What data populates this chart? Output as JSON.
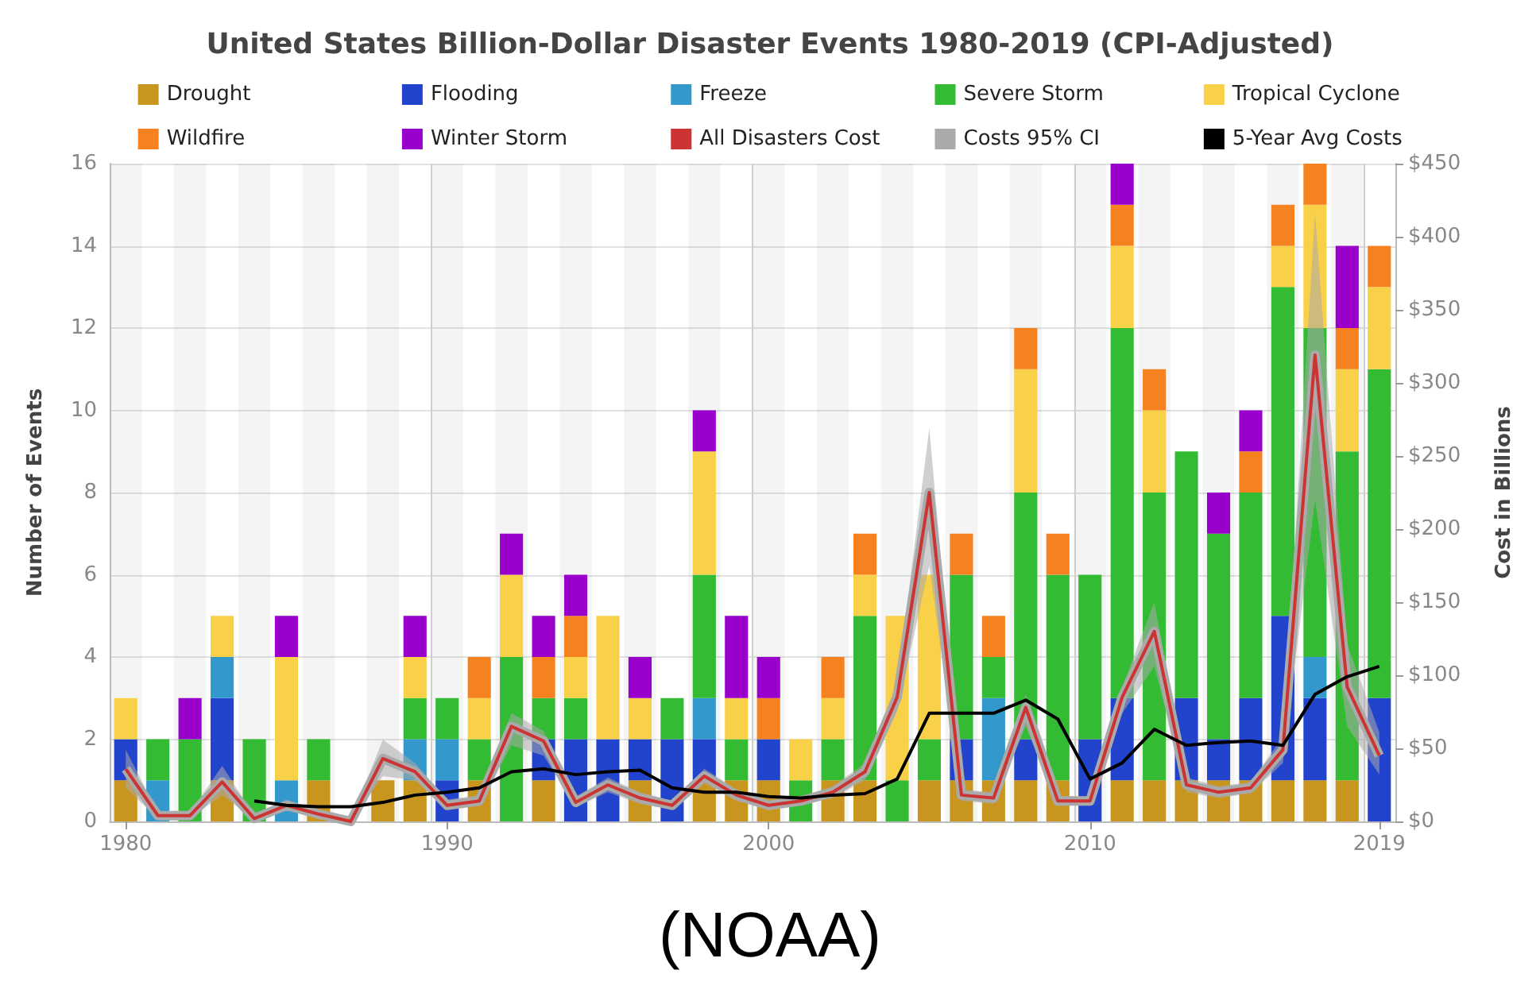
{
  "chart_data": {
    "type": "bar",
    "title": "United States Billion-Dollar Disaster Events 1980-2019 (CPI-Adjusted)",
    "ylabel": "Number of Events",
    "y2label": "Cost in Billions",
    "categories": [
      "1980",
      null,
      null,
      null,
      null,
      null,
      null,
      null,
      null,
      null,
      "1990",
      null,
      null,
      null,
      null,
      null,
      null,
      null,
      null,
      null,
      "2000",
      null,
      null,
      null,
      null,
      null,
      null,
      null,
      null,
      null,
      "2010",
      null,
      null,
      null,
      null,
      null,
      null,
      null,
      null,
      "2019"
    ],
    "stacked": true,
    "ylim": [
      0,
      16
    ],
    "yticks": [
      0,
      2,
      4,
      6,
      8,
      10,
      12,
      14,
      16
    ],
    "y2lim": [
      0,
      450
    ],
    "y2ticks": [
      {
        "value": 0,
        "label": "$0"
      },
      {
        "value": 50,
        "label": "$50"
      },
      {
        "value": 100,
        "label": "$100"
      },
      {
        "value": 150,
        "label": "$150"
      },
      {
        "value": 200,
        "label": "$200"
      },
      {
        "value": 250,
        "label": "$250"
      },
      {
        "value": 300,
        "label": "$300"
      },
      {
        "value": 350,
        "label": "$350"
      },
      {
        "value": 400,
        "label": "$400"
      },
      {
        "value": 450,
        "label": "$450"
      }
    ],
    "grid": true,
    "legend": "top",
    "marker": "none",
    "line_style": "solid",
    "annotations": [
      "(NOAA)"
    ],
    "series": [
      {
        "name": "Drought",
        "color": "#c8961e",
        "values": [
          1,
          0,
          0,
          1,
          0,
          0,
          1,
          0,
          1,
          1,
          0,
          1,
          0,
          1,
          0,
          0,
          1,
          0,
          1,
          1,
          1,
          0,
          1,
          1,
          0,
          1,
          1,
          1,
          1,
          1,
          0,
          1,
          1,
          1,
          1,
          1,
          1,
          1,
          1,
          0
        ]
      },
      {
        "name": "Flooding",
        "color": "#2244cc",
        "values": [
          1,
          0,
          0,
          2,
          0,
          0,
          0,
          0,
          0,
          0,
          1,
          0,
          0,
          1,
          2,
          2,
          1,
          2,
          1,
          0,
          1,
          0,
          0,
          0,
          0,
          0,
          1,
          0,
          1,
          0,
          2,
          2,
          0,
          2,
          1,
          2,
          4,
          2,
          0,
          3
        ]
      },
      {
        "name": "Freeze",
        "color": "#3399cc",
        "values": [
          0,
          1,
          0,
          1,
          0,
          1,
          0,
          0,
          0,
          1,
          1,
          0,
          0,
          0,
          0,
          0,
          0,
          0,
          1,
          0,
          0,
          0,
          0,
          0,
          0,
          0,
          0,
          2,
          0,
          0,
          0,
          0,
          0,
          0,
          0,
          0,
          0,
          1,
          0,
          0
        ]
      },
      {
        "name": "Severe Storm",
        "color": "#33bb33",
        "values": [
          0,
          1,
          2,
          0,
          2,
          0,
          1,
          0,
          0,
          1,
          1,
          1,
          4,
          1,
          1,
          0,
          0,
          1,
          3,
          1,
          0,
          1,
          1,
          4,
          1,
          1,
          4,
          1,
          6,
          5,
          4,
          9,
          7,
          6,
          5,
          5,
          8,
          8,
          8,
          8
        ]
      },
      {
        "name": "Tropical Cyclone",
        "color": "#f9d148",
        "values": [
          1,
          0,
          0,
          1,
          0,
          3,
          0,
          0,
          0,
          1,
          0,
          1,
          2,
          0,
          1,
          3,
          1,
          0,
          3,
          1,
          0,
          1,
          1,
          1,
          4,
          4,
          0,
          0,
          3,
          0,
          0,
          2,
          2,
          0,
          0,
          0,
          1,
          3,
          2,
          2
        ]
      },
      {
        "name": "Wildfire",
        "color": "#f5821f",
        "values": [
          0,
          0,
          0,
          0,
          0,
          0,
          0,
          0,
          0,
          0,
          0,
          1,
          0,
          1,
          1,
          0,
          0,
          0,
          0,
          0,
          1,
          0,
          1,
          1,
          0,
          0,
          1,
          1,
          1,
          1,
          0,
          1,
          1,
          0,
          0,
          1,
          1,
          1,
          1,
          1
        ]
      },
      {
        "name": "Winter Storm",
        "color": "#9900cc",
        "values": [
          0,
          0,
          1,
          0,
          0,
          1,
          0,
          0,
          0,
          1,
          0,
          0,
          1,
          1,
          1,
          0,
          1,
          0,
          1,
          2,
          1,
          0,
          0,
          0,
          0,
          0,
          0,
          0,
          0,
          0,
          0,
          1,
          0,
          0,
          1,
          1,
          0,
          0,
          2,
          0
        ]
      },
      {
        "name": "All Disasters Cost",
        "type": "line",
        "axis": "y2",
        "color": "#cc3333",
        "values": [
          36,
          4,
          4,
          27,
          2,
          11,
          5,
          0,
          43,
          34,
          11,
          14,
          65,
          55,
          13,
          25,
          16,
          11,
          31,
          18,
          11,
          14,
          20,
          34,
          85,
          225,
          18,
          16,
          78,
          14,
          14,
          85,
          130,
          25,
          20,
          23,
          49,
          319,
          92,
          45
        ]
      },
      {
        "name": "Costs 95% CI",
        "type": "line",
        "axis": "y2",
        "color": "#aaaaaa",
        "values": [
          36,
          4,
          4,
          27,
          2,
          11,
          5,
          0,
          43,
          34,
          11,
          14,
          65,
          55,
          13,
          25,
          16,
          11,
          31,
          18,
          11,
          14,
          20,
          34,
          85,
          225,
          18,
          16,
          78,
          14,
          14,
          85,
          130,
          25,
          20,
          23,
          49,
          319,
          92,
          45
        ],
        "lower": [
          23,
          2,
          2,
          18,
          1,
          8,
          3,
          0,
          31,
          28,
          8,
          11,
          52,
          45,
          10,
          20,
          12,
          8,
          26,
          14,
          8,
          11,
          16,
          28,
          75,
          175,
          14,
          12,
          65,
          11,
          11,
          74,
          106,
          20,
          16,
          19,
          40,
          220,
          65,
          32
        ],
        "upper": [
          49,
          6,
          6,
          38,
          4,
          15,
          8,
          1,
          56,
          40,
          15,
          18,
          74,
          62,
          17,
          30,
          20,
          14,
          36,
          22,
          14,
          17,
          24,
          40,
          95,
          269,
          22,
          20,
          87,
          17,
          17,
          92,
          150,
          30,
          24,
          27,
          58,
          416,
          121,
          61
        ]
      },
      {
        "name": "5-Year Avg Costs",
        "type": "line",
        "axis": "y2",
        "color": "#000000",
        "values": [
          null,
          null,
          null,
          null,
          14,
          11,
          10,
          10,
          13,
          18,
          20,
          23,
          34,
          36,
          32,
          34,
          35,
          23,
          20,
          20,
          17,
          16,
          18,
          19,
          29,
          74,
          74,
          74,
          83,
          70,
          29,
          40,
          63,
          52,
          54,
          55,
          52,
          87,
          99,
          106
        ]
      }
    ]
  }
}
